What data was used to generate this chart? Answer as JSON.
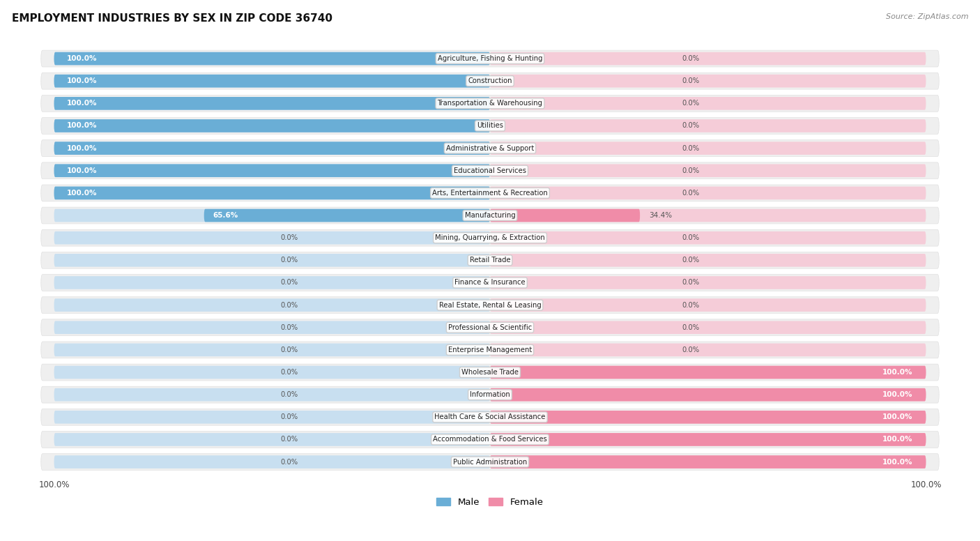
{
  "title": "EMPLOYMENT INDUSTRIES BY SEX IN ZIP CODE 36740",
  "source": "Source: ZipAtlas.com",
  "male_color": "#6aaed6",
  "female_color": "#f08ca8",
  "male_bg_color": "#c8dff0",
  "female_bg_color": "#f5ccd8",
  "row_bg_color": "#ebebeb",
  "row_bg_color2": "#f5f5f8",
  "industries": [
    "Agriculture, Fishing & Hunting",
    "Construction",
    "Transportation & Warehousing",
    "Utilities",
    "Administrative & Support",
    "Educational Services",
    "Arts, Entertainment & Recreation",
    "Manufacturing",
    "Mining, Quarrying, & Extraction",
    "Retail Trade",
    "Finance & Insurance",
    "Real Estate, Rental & Leasing",
    "Professional & Scientific",
    "Enterprise Management",
    "Wholesale Trade",
    "Information",
    "Health Care & Social Assistance",
    "Accommodation & Food Services",
    "Public Administration"
  ],
  "male_pct": [
    100.0,
    100.0,
    100.0,
    100.0,
    100.0,
    100.0,
    100.0,
    65.6,
    0.0,
    0.0,
    0.0,
    0.0,
    0.0,
    0.0,
    0.0,
    0.0,
    0.0,
    0.0,
    0.0
  ],
  "female_pct": [
    0.0,
    0.0,
    0.0,
    0.0,
    0.0,
    0.0,
    0.0,
    34.4,
    0.0,
    0.0,
    0.0,
    0.0,
    0.0,
    0.0,
    100.0,
    100.0,
    100.0,
    100.0,
    100.0
  ]
}
